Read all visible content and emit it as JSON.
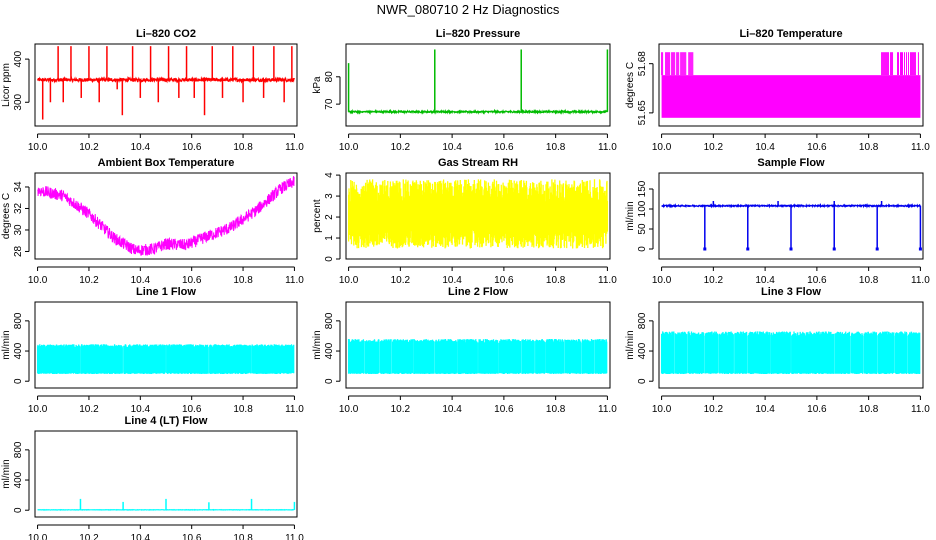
{
  "title": "NWR_080710  2 Hz Diagnostics",
  "chart_data": [
    {
      "type": "line",
      "title": "Li–820 CO2",
      "ylabel": "Licor ppm",
      "color": "#ff0000",
      "xlim": [
        9.99,
        11.01
      ],
      "ylim": [
        245,
        435
      ],
      "xticks": [
        "10.0",
        "10.2",
        "10.4",
        "10.6",
        "10.8",
        "11.0"
      ],
      "yticks": [
        {
          "v": 300,
          "t": "300"
        },
        {
          "v": 400,
          "t": "400"
        }
      ],
      "base": 352,
      "noise": 4,
      "spikes": [
        [
          10.02,
          260
        ],
        [
          10.05,
          300
        ],
        [
          10.08,
          430
        ],
        [
          10.1,
          300
        ],
        [
          10.13,
          430
        ],
        [
          10.17,
          310
        ],
        [
          10.2,
          430
        ],
        [
          10.24,
          300
        ],
        [
          10.27,
          430
        ],
        [
          10.31,
          330
        ],
        [
          10.33,
          270
        ],
        [
          10.37,
          430
        ],
        [
          10.4,
          310
        ],
        [
          10.44,
          430
        ],
        [
          10.47,
          300
        ],
        [
          10.51,
          430
        ],
        [
          10.55,
          310
        ],
        [
          10.58,
          430
        ],
        [
          10.61,
          310
        ],
        [
          10.65,
          270
        ],
        [
          10.68,
          430
        ],
        [
          10.72,
          310
        ],
        [
          10.76,
          430
        ],
        [
          10.8,
          300
        ],
        [
          10.84,
          430
        ],
        [
          10.88,
          310
        ],
        [
          10.92,
          430
        ],
        [
          10.96,
          300
        ],
        [
          10.99,
          430
        ]
      ]
    },
    {
      "type": "line",
      "title": "Li–820 Pressure",
      "ylabel": "kPa",
      "color": "#00bb00",
      "xlim": [
        9.99,
        11.01
      ],
      "ylim": [
        62,
        92
      ],
      "xticks": [
        "10.0",
        "10.2",
        "10.4",
        "10.6",
        "10.8",
        "11.0"
      ],
      "yticks": [
        {
          "v": 70,
          "t": "70"
        },
        {
          "v": 80,
          "t": "80"
        }
      ],
      "base": 67.2,
      "noise": 0.3,
      "spikes": [
        [
          10.0,
          85
        ],
        [
          10.333,
          90
        ],
        [
          10.667,
          90
        ],
        [
          11.0,
          90
        ]
      ]
    },
    {
      "type": "pulse",
      "title": "Li–820 Temperature",
      "ylabel": "degrees C",
      "color": "#ff00ff",
      "xlim": [
        9.99,
        11.01
      ],
      "ylim": [
        51.642,
        51.692
      ],
      "xticks": [
        "10.0",
        "10.2",
        "10.4",
        "10.6",
        "10.8",
        "11.0"
      ],
      "yticks": [
        {
          "v": 51.65,
          "t": "51.65"
        },
        {
          "v": 51.68,
          "t": "51.68"
        }
      ],
      "low": 51.647,
      "mid": 51.673,
      "high": 51.687,
      "bursts": [
        [
          10.0,
          10.14
        ],
        [
          10.85,
          11.0
        ]
      ]
    },
    {
      "type": "line",
      "title": "Ambient Box Temperature",
      "ylabel": "degrees C",
      "color": "#ff00ff",
      "xlim": [
        9.99,
        11.01
      ],
      "ylim": [
        27.3,
        35.3
      ],
      "xticks": [
        "10.0",
        "10.2",
        "10.4",
        "10.6",
        "10.8",
        "11.0"
      ],
      "yticks": [
        {
          "v": 28,
          "t": "28"
        },
        {
          "v": 30,
          "t": "30"
        },
        {
          "v": 32,
          "t": "32"
        },
        {
          "v": 34,
          "t": "34"
        }
      ],
      "curve": [
        [
          10.0,
          33.7
        ],
        [
          10.1,
          33.2
        ],
        [
          10.2,
          31.5
        ],
        [
          10.3,
          29.2
        ],
        [
          10.38,
          28.1
        ],
        [
          10.45,
          28.2
        ],
        [
          10.5,
          28.7
        ],
        [
          10.58,
          28.6
        ],
        [
          10.65,
          29.3
        ],
        [
          10.75,
          30.2
        ],
        [
          10.85,
          31.8
        ],
        [
          10.95,
          33.9
        ],
        [
          11.0,
          34.5
        ]
      ],
      "noise": 0.55
    },
    {
      "type": "band",
      "title": "Gas Stream RH",
      "ylabel": "percent",
      "color": "#ffff00",
      "xlim": [
        9.99,
        11.01
      ],
      "ylim": [
        0,
        4.1
      ],
      "xticks": [
        "10.0",
        "10.2",
        "10.4",
        "10.6",
        "10.8",
        "11.0"
      ],
      "yticks": [
        {
          "v": 0,
          "t": "0"
        },
        {
          "v": 1,
          "t": "1"
        },
        {
          "v": 2,
          "t": "2"
        },
        {
          "v": 3,
          "t": "3"
        },
        {
          "v": 4,
          "t": "4"
        }
      ],
      "lo": [
        0.5,
        1.5
      ],
      "hi": [
        2.6,
        3.8
      ]
    },
    {
      "type": "line",
      "title": "Sample Flow",
      "ylabel": "ml/min",
      "color": "#0000ee",
      "xlim": [
        9.99,
        11.01
      ],
      "ylim": [
        -25,
        190
      ],
      "xticks": [
        "10.0",
        "10.2",
        "10.4",
        "10.6",
        "10.8",
        "11.0"
      ],
      "yticks": [
        {
          "v": 0,
          "t": "0"
        },
        {
          "v": 50,
          "t": "50"
        },
        {
          "v": 100,
          "t": "100"
        },
        {
          "v": 150,
          "t": "150"
        }
      ],
      "base": 108,
      "noise": 1.5,
      "dips": [
        [
          10.167,
          0
        ],
        [
          10.333,
          0
        ],
        [
          10.5,
          0
        ],
        [
          10.667,
          0
        ],
        [
          10.833,
          0
        ],
        [
          11.0,
          0
        ]
      ],
      "ups": [
        10.2,
        10.45,
        10.667,
        10.85
      ]
    },
    {
      "type": "band",
      "title": "Line 1 Flow",
      "ylabel": "ml/min",
      "color": "#00ffff",
      "xlim": [
        9.99,
        11.01
      ],
      "ylim": [
        -90,
        1050
      ],
      "xticks": [
        "10.0",
        "10.2",
        "10.4",
        "10.6",
        "10.8",
        "11.0"
      ],
      "yticks": [
        {
          "v": 0,
          "t": "0"
        },
        {
          "v": 400,
          "t": "400"
        },
        {
          "v": 800,
          "t": "800"
        }
      ],
      "lo": [
        95,
        115
      ],
      "hi": [
        450,
        490
      ],
      "gaps": [
        10.167,
        10.333,
        10.5,
        10.667,
        10.833,
        11.0
      ]
    },
    {
      "type": "band",
      "title": "Line 2 Flow",
      "ylabel": "ml/min",
      "color": "#00ffff",
      "xlim": [
        9.99,
        11.01
      ],
      "ylim": [
        -90,
        1050
      ],
      "xticks": [
        "10.0",
        "10.2",
        "10.4",
        "10.6",
        "10.8",
        "11.0"
      ],
      "yticks": [
        {
          "v": 0,
          "t": "0"
        },
        {
          "v": 400,
          "t": "400"
        },
        {
          "v": 800,
          "t": "800"
        }
      ],
      "lo": [
        95,
        115
      ],
      "hi": [
        510,
        560
      ],
      "gaps": [
        10.06,
        10.12,
        10.167,
        10.25,
        10.333,
        10.42,
        10.5,
        10.58,
        10.667,
        10.72,
        10.76,
        10.833,
        10.9,
        10.95,
        11.0
      ]
    },
    {
      "type": "band",
      "title": "Line 3 Flow",
      "ylabel": "ml/min",
      "color": "#00ffff",
      "xlim": [
        9.99,
        11.01
      ],
      "ylim": [
        -90,
        1050
      ],
      "xticks": [
        "10.0",
        "10.2",
        "10.4",
        "10.6",
        "10.8",
        "11.0"
      ],
      "yticks": [
        {
          "v": 0,
          "t": "0"
        },
        {
          "v": 400,
          "t": "400"
        },
        {
          "v": 800,
          "t": "800"
        }
      ],
      "lo": [
        95,
        115
      ],
      "hi": [
        600,
        660
      ],
      "gaps": [
        10.05,
        10.1,
        10.167,
        10.22,
        10.28,
        10.333,
        10.42,
        10.5,
        10.667,
        10.73,
        10.78,
        10.833,
        10.9,
        10.95,
        11.0
      ]
    },
    {
      "type": "line",
      "title": "Line 4 (LT) Flow",
      "ylabel": "ml/min",
      "color": "#00ffff",
      "xlim": [
        9.99,
        11.01
      ],
      "ylim": [
        -90,
        1050
      ],
      "xticks": [
        "10.0",
        "10.2",
        "10.4",
        "10.6",
        "10.8",
        "11.0"
      ],
      "yticks": [
        {
          "v": 0,
          "t": "0"
        },
        {
          "v": 400,
          "t": "400"
        },
        {
          "v": 800,
          "t": "800"
        }
      ],
      "base": 5,
      "noise": 2,
      "spikes": [
        [
          10.167,
          150
        ],
        [
          10.333,
          110
        ],
        [
          10.5,
          150
        ],
        [
          10.667,
          105
        ],
        [
          10.833,
          150
        ],
        [
          11.0,
          110
        ]
      ]
    }
  ]
}
